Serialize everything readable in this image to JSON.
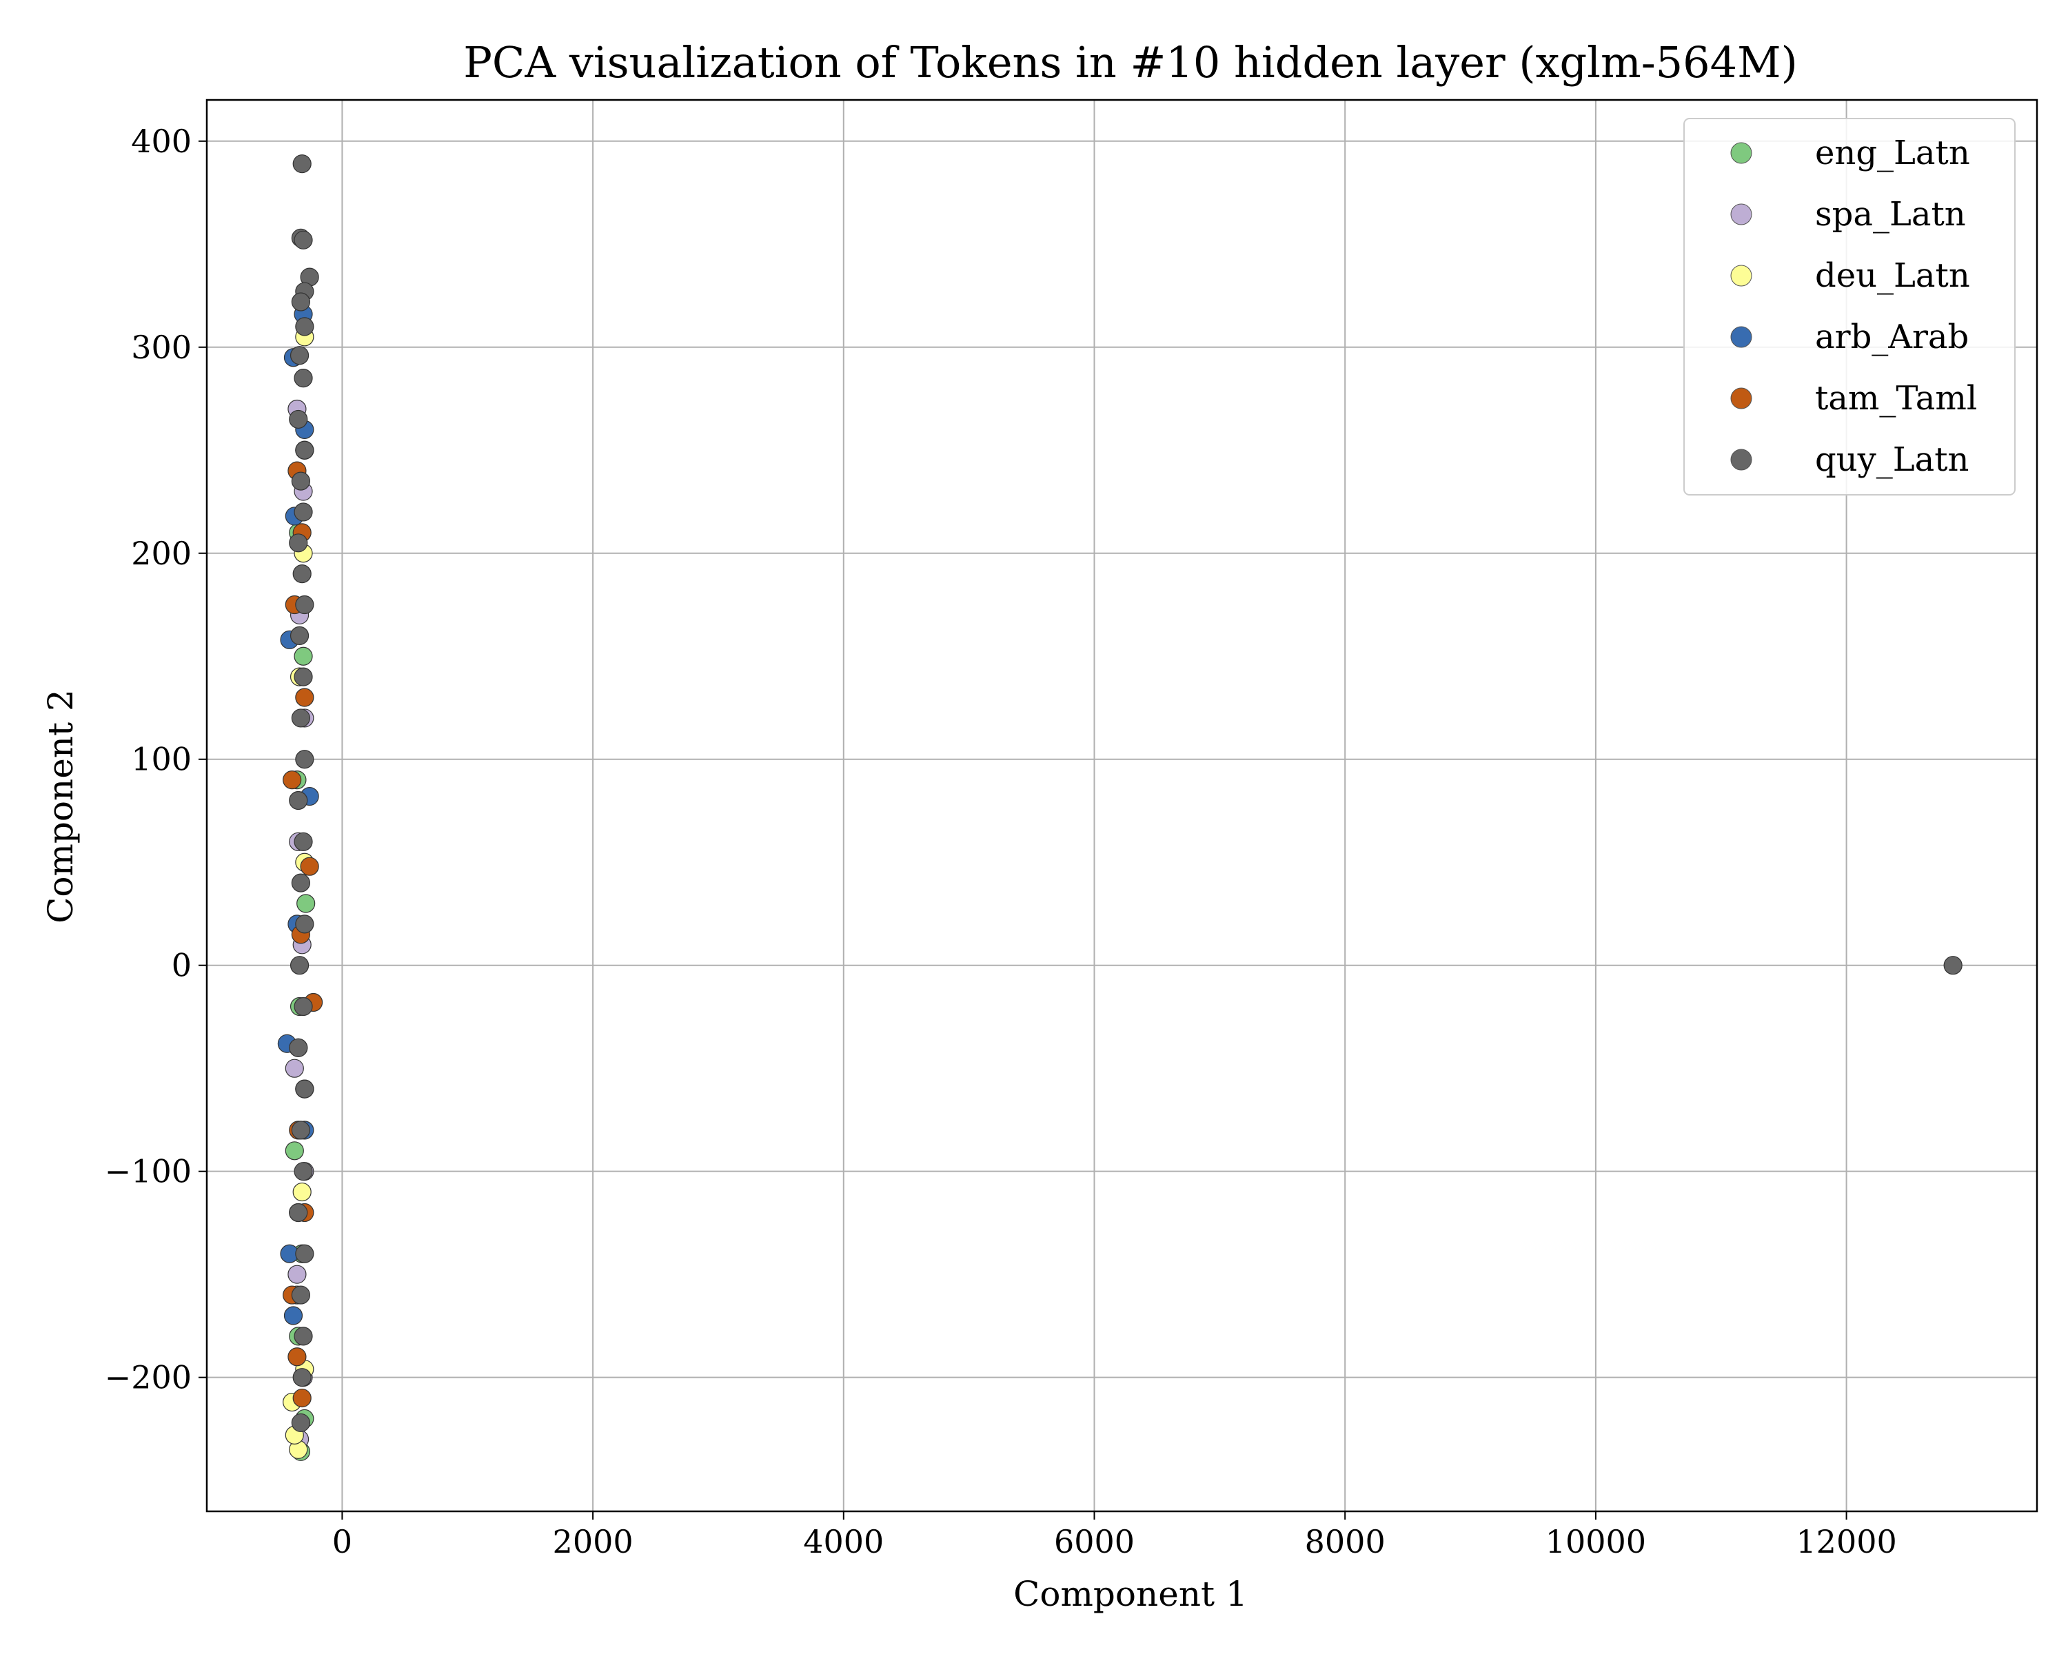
{
  "chart_data": {
    "type": "scatter",
    "title": "PCA visualization of Tokens in #10 hidden layer (xglm-564M)",
    "xlabel": "Component 1",
    "ylabel": "Component 2",
    "xlim": [
      -1080,
      13520
    ],
    "ylim": [
      -265,
      420
    ],
    "xticks": [
      0,
      2000,
      4000,
      6000,
      8000,
      10000,
      12000
    ],
    "xtick_labels": [
      "0",
      "2000",
      "4000",
      "6000",
      "8000",
      "10000",
      "12000"
    ],
    "yticks": [
      -200,
      -100,
      0,
      100,
      200,
      300,
      400
    ],
    "ytick_labels": [
      "−200",
      "−100",
      "0",
      "100",
      "200",
      "300",
      "400"
    ],
    "grid": true,
    "legend_position": "top-right",
    "series": [
      {
        "name": "eng_Latn",
        "color": "#7fc97f",
        "points": [
          [
            -330,
            -236
          ],
          [
            -300,
            -220
          ],
          [
            -350,
            -180
          ],
          [
            -320,
            -140
          ],
          [
            -380,
            -90
          ],
          [
            -300,
            -60
          ],
          [
            -340,
            -20
          ],
          [
            -290,
            30
          ],
          [
            -360,
            90
          ],
          [
            -310,
            150
          ],
          [
            -350,
            210
          ],
          [
            -300,
            250
          ]
        ]
      },
      {
        "name": "spa_Latn",
        "color": "#beaed4",
        "points": [
          [
            -340,
            -230
          ],
          [
            -310,
            -200
          ],
          [
            -360,
            -150
          ],
          [
            -300,
            -100
          ],
          [
            -380,
            -50
          ],
          [
            -320,
            10
          ],
          [
            -350,
            60
          ],
          [
            -300,
            120
          ],
          [
            -340,
            170
          ],
          [
            -310,
            230
          ],
          [
            -360,
            270
          ]
        ]
      },
      {
        "name": "deu_Latn",
        "color": "#fdfd96",
        "points": [
          [
            -350,
            -235
          ],
          [
            -380,
            -228
          ],
          [
            -400,
            -212
          ],
          [
            -300,
            -196
          ],
          [
            -360,
            -160
          ],
          [
            -320,
            -110
          ],
          [
            -350,
            -40
          ],
          [
            -300,
            50
          ],
          [
            -340,
            140
          ],
          [
            -310,
            200
          ],
          [
            -300,
            305
          ]
        ]
      },
      {
        "name": "arb_Arab",
        "color": "#386cb0",
        "points": [
          [
            -390,
            -170
          ],
          [
            -420,
            -140
          ],
          [
            -350,
            -120
          ],
          [
            -300,
            -80
          ],
          [
            -440,
            -38
          ],
          [
            -360,
            20
          ],
          [
            -260,
            82
          ],
          [
            -420,
            158
          ],
          [
            -380,
            218
          ],
          [
            -300,
            260
          ],
          [
            -390,
            295
          ],
          [
            -310,
            316
          ]
        ]
      },
      {
        "name": "tam_Taml",
        "color": "#c05a13",
        "points": [
          [
            -320,
            -210
          ],
          [
            -360,
            -190
          ],
          [
            -400,
            -160
          ],
          [
            -300,
            -120
          ],
          [
            -350,
            -80
          ],
          [
            -230,
            -18
          ],
          [
            -330,
            15
          ],
          [
            -260,
            48
          ],
          [
            -400,
            90
          ],
          [
            -300,
            130
          ],
          [
            -380,
            175
          ],
          [
            -320,
            210
          ],
          [
            -360,
            240
          ]
        ]
      },
      {
        "name": "quy_Latn",
        "color": "#666666",
        "points": [
          [
            -320,
            389
          ],
          [
            -330,
            353
          ],
          [
            -310,
            352
          ],
          [
            -260,
            334
          ],
          [
            -300,
            327
          ],
          [
            -330,
            322
          ],
          [
            -300,
            310
          ],
          [
            -340,
            296
          ],
          [
            -310,
            285
          ],
          [
            -350,
            265
          ],
          [
            -300,
            250
          ],
          [
            -330,
            235
          ],
          [
            -310,
            220
          ],
          [
            -350,
            205
          ],
          [
            -320,
            190
          ],
          [
            -300,
            175
          ],
          [
            -340,
            160
          ],
          [
            -310,
            140
          ],
          [
            -330,
            120
          ],
          [
            -300,
            100
          ],
          [
            -350,
            80
          ],
          [
            -310,
            60
          ],
          [
            -330,
            40
          ],
          [
            -300,
            20
          ],
          [
            -340,
            0
          ],
          [
            -310,
            -20
          ],
          [
            -350,
            -40
          ],
          [
            -300,
            -60
          ],
          [
            -330,
            -80
          ],
          [
            -310,
            -100
          ],
          [
            -350,
            -120
          ],
          [
            -300,
            -140
          ],
          [
            -330,
            -160
          ],
          [
            -310,
            -180
          ],
          [
            -320,
            -200
          ],
          [
            -330,
            -222
          ],
          [
            12850,
            0
          ]
        ]
      }
    ]
  }
}
